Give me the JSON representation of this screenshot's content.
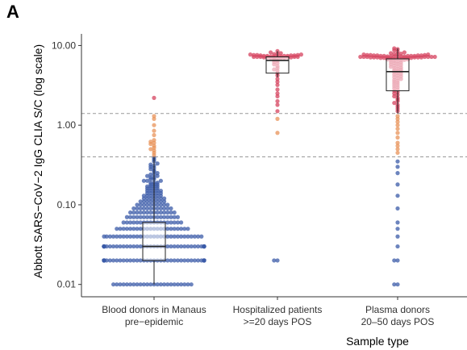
{
  "panel_label": "A",
  "chart_data": {
    "type": "scatter",
    "title": "",
    "xlabel": "Sample type",
    "ylabel": "Abbott SARS−CoV−2 IgG CLIA S/C (log scale)",
    "y_scale": "log",
    "ylim": [
      0.007,
      14
    ],
    "y_ticks": [
      {
        "value": 0.01,
        "label": "0.01"
      },
      {
        "value": 0.1,
        "label": "0.10"
      },
      {
        "value": 1,
        "label": "1.00"
      },
      {
        "value": 10,
        "label": "10.00"
      }
    ],
    "categories": [
      {
        "line1": "Blood donors in Manaus",
        "line2": "pre−epidemic"
      },
      {
        "line1": "Hospitalized patients",
        "line2": ">=20 days POS"
      },
      {
        "line1": "Plasma donors",
        "line2": "20–50 days POS"
      }
    ],
    "thresholds": [
      1.4,
      0.4
    ],
    "grid": false,
    "legend": "none",
    "colors": {
      "low": "#3b5ba8",
      "mid": "#e8935a",
      "high": "#d6435f"
    },
    "boxes": [
      {
        "category": 0,
        "min": 0.01,
        "q1": 0.02,
        "median": 0.03,
        "q3": 0.06,
        "max": 0.4
      },
      {
        "category": 1,
        "min": 4.0,
        "q1": 4.5,
        "median": 6.5,
        "q3": 7.2,
        "max": 8.5
      },
      {
        "category": 2,
        "min": 1.4,
        "q1": 2.7,
        "median": 4.7,
        "q3": 6.8,
        "max": 9.2
      }
    ],
    "point_groups": [
      {
        "category": 0,
        "values": [
          0.01,
          0.01,
          0.01,
          0.01,
          0.01,
          0.01,
          0.01,
          0.01,
          0.01,
          0.01,
          0.01,
          0.01,
          0.01,
          0.01,
          0.01,
          0.01,
          0.01,
          0.01,
          0.01,
          0.01,
          0.01,
          0.01,
          0.01,
          0.01,
          0.02,
          0.02,
          0.02,
          0.02,
          0.02,
          0.02,
          0.02,
          0.02,
          0.02,
          0.02,
          0.02,
          0.02,
          0.02,
          0.02,
          0.02,
          0.02,
          0.02,
          0.02,
          0.02,
          0.02,
          0.02,
          0.02,
          0.02,
          0.02,
          0.02,
          0.02,
          0.02,
          0.02,
          0.02,
          0.02,
          0.02,
          0.02,
          0.02,
          0.02,
          0.02,
          0.02,
          0.02,
          0.02,
          0.02,
          0.02,
          0.02,
          0.02,
          0.02,
          0.02,
          0.02,
          0.02,
          0.03,
          0.03,
          0.03,
          0.03,
          0.03,
          0.03,
          0.03,
          0.03,
          0.03,
          0.03,
          0.03,
          0.03,
          0.03,
          0.03,
          0.03,
          0.03,
          0.03,
          0.03,
          0.03,
          0.03,
          0.03,
          0.03,
          0.03,
          0.03,
          0.03,
          0.03,
          0.03,
          0.03,
          0.03,
          0.03,
          0.03,
          0.03,
          0.03,
          0.03,
          0.03,
          0.03,
          0.03,
          0.03,
          0.03,
          0.03,
          0.03,
          0.03,
          0.03,
          0.03,
          0.03,
          0.03,
          0.03,
          0.03,
          0.04,
          0.04,
          0.04,
          0.04,
          0.04,
          0.04,
          0.04,
          0.04,
          0.04,
          0.04,
          0.04,
          0.04,
          0.04,
          0.04,
          0.04,
          0.04,
          0.04,
          0.04,
          0.04,
          0.04,
          0.04,
          0.04,
          0.04,
          0.04,
          0.04,
          0.04,
          0.04,
          0.04,
          0.04,
          0.04,
          0.05,
          0.05,
          0.05,
          0.05,
          0.05,
          0.05,
          0.05,
          0.05,
          0.05,
          0.05,
          0.05,
          0.05,
          0.05,
          0.05,
          0.05,
          0.05,
          0.05,
          0.05,
          0.05,
          0.05,
          0.05,
          0.05,
          0.06,
          0.06,
          0.06,
          0.06,
          0.06,
          0.06,
          0.06,
          0.06,
          0.06,
          0.06,
          0.06,
          0.06,
          0.06,
          0.06,
          0.06,
          0.06,
          0.06,
          0.06,
          0.07,
          0.07,
          0.07,
          0.07,
          0.07,
          0.07,
          0.07,
          0.07,
          0.07,
          0.07,
          0.07,
          0.07,
          0.07,
          0.07,
          0.07,
          0.07,
          0.08,
          0.08,
          0.08,
          0.08,
          0.08,
          0.08,
          0.08,
          0.08,
          0.08,
          0.08,
          0.08,
          0.08,
          0.08,
          0.08,
          0.09,
          0.09,
          0.09,
          0.09,
          0.09,
          0.09,
          0.09,
          0.09,
          0.09,
          0.09,
          0.09,
          0.09,
          0.1,
          0.1,
          0.1,
          0.1,
          0.1,
          0.1,
          0.1,
          0.1,
          0.1,
          0.1,
          0.11,
          0.11,
          0.11,
          0.11,
          0.11,
          0.11,
          0.11,
          0.11,
          0.12,
          0.12,
          0.12,
          0.12,
          0.12,
          0.12,
          0.12,
          0.13,
          0.13,
          0.13,
          0.13,
          0.13,
          0.13,
          0.14,
          0.14,
          0.14,
          0.14,
          0.14,
          0.15,
          0.15,
          0.15,
          0.15,
          0.15,
          0.16,
          0.16,
          0.16,
          0.16,
          0.17,
          0.17,
          0.17,
          0.17,
          0.18,
          0.18,
          0.18,
          0.19,
          0.19,
          0.19,
          0.2,
          0.2,
          0.2,
          0.21,
          0.21,
          0.22,
          0.22,
          0.23,
          0.23,
          0.24,
          0.24,
          0.25,
          0.26,
          0.27,
          0.28,
          0.29,
          0.3,
          0.31,
          0.32,
          0.33,
          0.35,
          0.37,
          0.39,
          0.42,
          0.45,
          0.48,
          0.5,
          0.52,
          0.55,
          0.58,
          0.6,
          0.62,
          0.65,
          0.75,
          0.85,
          1.0,
          1.2,
          1.3,
          2.2
        ]
      },
      {
        "category": 1,
        "values": [
          0.02,
          0.02,
          0.8,
          1.2,
          1.5,
          1.8,
          2.0,
          2.3,
          2.5,
          2.8,
          3.2,
          3.5,
          3.8,
          4.2,
          4.5,
          4.8,
          5.0,
          5.2,
          5.5,
          5.8,
          6.0,
          6.2,
          6.4,
          6.6,
          6.8,
          7.0,
          7.0,
          7.0,
          7.0,
          7.1,
          7.1,
          7.1,
          7.1,
          7.2,
          7.2,
          7.2,
          7.2,
          7.2,
          7.3,
          7.3,
          7.3,
          7.3,
          7.4,
          7.4,
          7.4,
          7.4,
          7.5,
          7.5,
          7.5,
          7.6,
          7.6,
          7.6,
          7.7,
          7.7,
          7.8,
          7.8,
          8.0,
          8.2,
          8.5
        ]
      },
      {
        "category": 2,
        "values": [
          0.01,
          0.01,
          0.02,
          0.02,
          0.03,
          0.04,
          0.05,
          0.06,
          0.09,
          0.13,
          0.18,
          0.25,
          0.3,
          0.35,
          0.45,
          0.5,
          0.55,
          0.6,
          0.7,
          0.8,
          0.9,
          1.0,
          1.1,
          1.2,
          1.3,
          1.5,
          1.6,
          1.7,
          1.8,
          1.9,
          2.0,
          2.1,
          2.2,
          2.3,
          2.4,
          2.5,
          2.6,
          2.7,
          2.8,
          2.9,
          3.0,
          3.1,
          3.2,
          3.3,
          3.4,
          3.5,
          3.6,
          3.7,
          3.8,
          3.9,
          4.0,
          4.1,
          4.2,
          4.3,
          4.4,
          4.5,
          4.6,
          4.7,
          4.8,
          4.9,
          5.0,
          5.1,
          5.2,
          5.3,
          5.4,
          5.5,
          5.6,
          5.7,
          5.8,
          5.9,
          6.0,
          6.1,
          6.2,
          6.3,
          6.4,
          6.5,
          6.6,
          6.6,
          6.7,
          6.7,
          6.8,
          6.8,
          6.9,
          6.9,
          7.0,
          7.0,
          7.0,
          7.0,
          7.0,
          7.0,
          7.1,
          7.1,
          7.1,
          7.1,
          7.1,
          7.1,
          7.2,
          7.2,
          7.2,
          7.2,
          7.2,
          7.2,
          7.2,
          7.3,
          7.3,
          7.3,
          7.3,
          7.3,
          7.3,
          7.4,
          7.4,
          7.4,
          7.4,
          7.4,
          7.5,
          7.5,
          7.5,
          7.5,
          7.6,
          7.6,
          7.6,
          7.7,
          7.7,
          7.8,
          7.8,
          7.9,
          8.0,
          8.2,
          8.4,
          8.7,
          9.0,
          9.2
        ]
      }
    ]
  }
}
